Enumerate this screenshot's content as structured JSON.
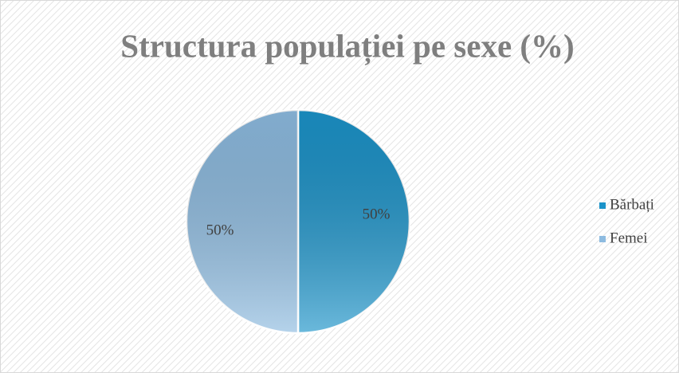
{
  "chart_data": {
    "type": "pie",
    "title": "Structura populației pe sexe (%)",
    "categories": [
      "Bărbați",
      "Femei"
    ],
    "values": [
      50,
      50
    ],
    "value_labels": [
      "50%",
      "50%"
    ],
    "colors": [
      "#1b93c9",
      "#8dbbe0"
    ],
    "legend": "right"
  }
}
